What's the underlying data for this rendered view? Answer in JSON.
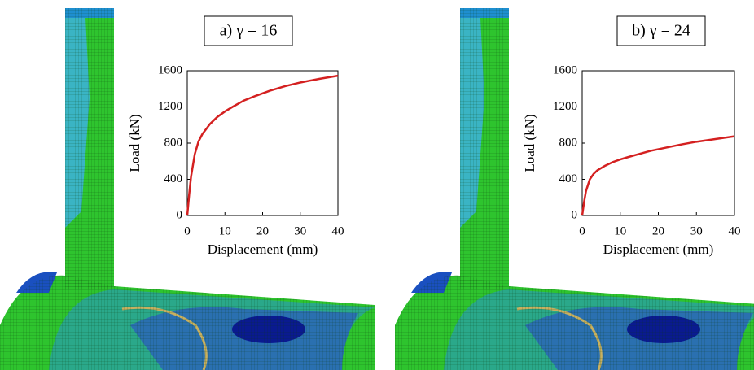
{
  "chart_data": [
    {
      "type": "line",
      "title": "a) γ = 16",
      "xlabel": "Displacement (mm)",
      "ylabel": "Load (kN)",
      "x": [
        0,
        0.5,
        1,
        2,
        3,
        4,
        6,
        8,
        10,
        12,
        15,
        18,
        22,
        26,
        30,
        35,
        40
      ],
      "values": [
        0,
        230,
        430,
        680,
        820,
        900,
        1010,
        1090,
        1150,
        1200,
        1270,
        1320,
        1380,
        1430,
        1470,
        1510,
        1545
      ],
      "color": "#d42020",
      "xlim": [
        0,
        40
      ],
      "ylim": [
        0,
        1600
      ],
      "xticks": [
        0,
        10,
        20,
        30,
        40
      ],
      "yticks": [
        0,
        400,
        800,
        1200,
        1600
      ]
    },
    {
      "type": "line",
      "title": "b) γ = 24",
      "xlabel": "Displacement (mm)",
      "ylabel": "Load (kN)",
      "x": [
        0,
        0.5,
        1,
        2,
        3,
        4,
        6,
        8,
        10,
        12,
        15,
        18,
        22,
        26,
        30,
        35,
        40
      ],
      "values": [
        0,
        150,
        270,
        400,
        460,
        500,
        550,
        590,
        620,
        645,
        680,
        715,
        750,
        785,
        815,
        845,
        875
      ],
      "color": "#d42020",
      "xlim": [
        0,
        40
      ],
      "ylim": [
        0,
        1600
      ],
      "xticks": [
        0,
        10,
        20,
        30,
        40
      ],
      "yticks": [
        0,
        400,
        800,
        1200,
        1600
      ]
    }
  ]
}
